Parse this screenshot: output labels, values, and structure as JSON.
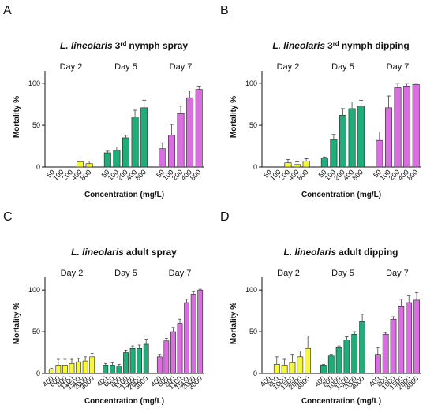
{
  "chart_data": [
    {
      "type": "bar",
      "panel": "A",
      "title_parts": [
        "L. lineolaris",
        "3",
        "rd",
        "nymph spray"
      ],
      "ylabel": "Mortality %",
      "xlabel": "Concentration (mg/L)",
      "ylim": [
        0,
        120
      ],
      "yticks": [
        0,
        50,
        100
      ],
      "groups": [
        {
          "name": "Day 2",
          "color": "#f7f73b",
          "categories": [
            "50",
            "100",
            "200",
            "400",
            "800"
          ],
          "values": [
            0,
            0,
            0,
            6,
            4
          ],
          "errors": [
            0,
            0,
            0,
            5,
            3
          ]
        },
        {
          "name": "Day 5",
          "color": "#1fae7a",
          "categories": [
            "50",
            "100",
            "200",
            "400",
            "800"
          ],
          "values": [
            17,
            20,
            35,
            60,
            71
          ],
          "errors": [
            2,
            4,
            3,
            8,
            9
          ]
        },
        {
          "name": "Day 7",
          "color": "#d96ee0",
          "categories": [
            "50",
            "100",
            "200",
            "400",
            "800"
          ],
          "values": [
            22,
            38,
            64,
            83,
            93
          ],
          "errors": [
            7,
            13,
            9,
            8,
            4
          ]
        }
      ]
    },
    {
      "type": "bar",
      "panel": "B",
      "title_parts": [
        "L. lineolaris",
        "3",
        "rd",
        "nymph dipping"
      ],
      "ylabel": "Mortality %",
      "xlabel": "Concentration (mg/L)",
      "ylim": [
        0,
        120
      ],
      "yticks": [
        0,
        50,
        100
      ],
      "groups": [
        {
          "name": "Day 2",
          "color": "#f7f73b",
          "categories": [
            "50",
            "100",
            "200",
            "400",
            "800"
          ],
          "values": [
            0,
            0,
            5,
            3,
            7
          ],
          "errors": [
            0,
            0,
            4,
            3,
            3
          ]
        },
        {
          "name": "Day 5",
          "color": "#1fae7a",
          "categories": [
            "50",
            "100",
            "200",
            "400",
            "800"
          ],
          "values": [
            11,
            33,
            62,
            70,
            73
          ],
          "errors": [
            1,
            6,
            8,
            8,
            7
          ]
        },
        {
          "name": "Day 7",
          "color": "#d96ee0",
          "categories": [
            "50",
            "100",
            "200",
            "400",
            "800"
          ],
          "values": [
            32,
            71,
            95,
            97,
            99
          ],
          "errors": [
            10,
            14,
            5,
            3,
            1
          ]
        }
      ]
    },
    {
      "type": "bar",
      "panel": "C",
      "title_parts": [
        "L. lineolaris",
        "adult spray"
      ],
      "ylabel": "Mortality %",
      "xlabel": "Concentration (mg/L)",
      "ylim": [
        0,
        120
      ],
      "yticks": [
        0,
        50,
        100
      ],
      "groups": [
        {
          "name": "Day 2",
          "color": "#f7f73b",
          "categories": [
            "400",
            "600",
            "800",
            "1100",
            "1500",
            "2000",
            "3000"
          ],
          "values": [
            5,
            10,
            10,
            12,
            14,
            15,
            20
          ],
          "errors": [
            1,
            7,
            7,
            5,
            4,
            5,
            4
          ]
        },
        {
          "name": "Day 5",
          "color": "#1fae7a",
          "categories": [
            "400",
            "600",
            "800",
            "1100",
            "1500",
            "2000",
            "3000"
          ],
          "values": [
            10,
            10,
            9,
            25,
            30,
            30,
            35
          ],
          "errors": [
            2,
            3,
            2,
            3,
            3,
            4,
            6
          ]
        },
        {
          "name": "Day 7",
          "color": "#d96ee0",
          "categories": [
            "400",
            "600",
            "800",
            "1100",
            "1500",
            "2000",
            "3000"
          ],
          "values": [
            20,
            39,
            50,
            60,
            85,
            95,
            100
          ],
          "errors": [
            2,
            3,
            5,
            5,
            4,
            3,
            1
          ]
        }
      ]
    },
    {
      "type": "bar",
      "panel": "D",
      "title_parts": [
        "L. lineolaris",
        "adult dipping"
      ],
      "ylabel": "Mortality %",
      "xlabel": "Concentration (mg/L)",
      "ylim": [
        0,
        120
      ],
      "yticks": [
        0,
        50,
        100
      ],
      "groups": [
        {
          "name": "Day 2",
          "color": "#f7f73b",
          "categories": [
            "400",
            "800",
            "1000",
            "1500",
            "2000",
            "3000"
          ],
          "values": [
            0,
            11,
            10,
            13,
            20,
            30
          ],
          "errors": [
            0,
            9,
            7,
            9,
            7,
            15
          ]
        },
        {
          "name": "Day 5",
          "color": "#1fae7a",
          "categories": [
            "400",
            "800",
            "1000",
            "1500",
            "2000",
            "3000"
          ],
          "values": [
            10,
            21,
            31,
            40,
            47,
            62
          ],
          "errors": [
            1,
            1,
            2,
            4,
            3,
            9
          ]
        },
        {
          "name": "Day 7",
          "color": "#d96ee0",
          "categories": [
            "400",
            "800",
            "1000",
            "1500",
            "2000",
            "3000"
          ],
          "values": [
            22,
            47,
            65,
            80,
            85,
            88
          ],
          "errors": [
            9,
            2,
            3,
            9,
            8,
            9
          ]
        }
      ]
    }
  ]
}
